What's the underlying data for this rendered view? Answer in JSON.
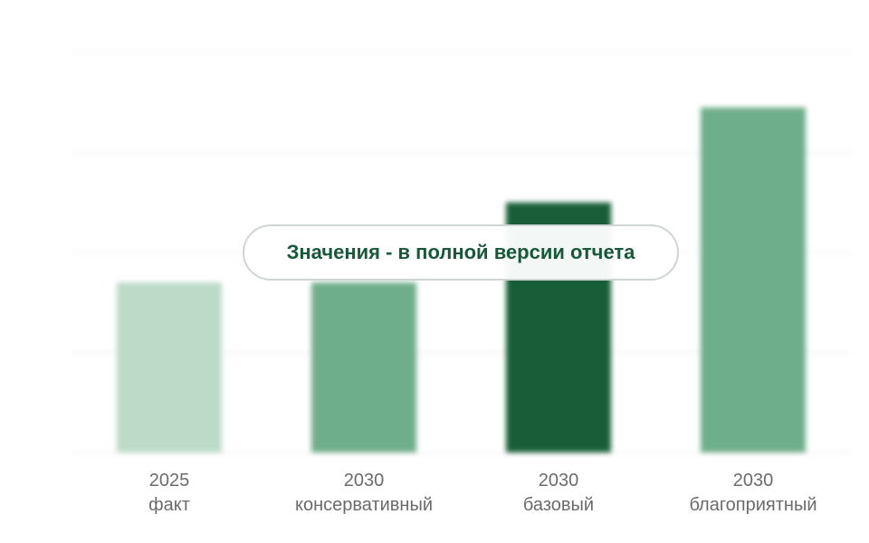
{
  "chart_data": {
    "type": "bar",
    "categories": [
      {
        "year": "2025",
        "scenario": "факт"
      },
      {
        "year": "2030",
        "scenario": "консервативный"
      },
      {
        "year": "2030",
        "scenario": "базовый"
      },
      {
        "year": "2030",
        "scenario": "благоприятный"
      }
    ],
    "values": [
      1.7,
      1.7,
      2.5,
      3.45
    ],
    "ylim": [
      0,
      4
    ],
    "grid": true,
    "bar_colors": [
      "#bcdac8",
      "#6fae8b",
      "#175e38",
      "#6fae8b"
    ],
    "colors": {
      "grid": "#f2f2f2",
      "label": "#6b6b6b",
      "overlay_text": "#17583a",
      "overlay_border": "#cfd6d2"
    },
    "values_hidden": true
  },
  "overlay": {
    "text": "Значения - в полной версии отчета"
  }
}
